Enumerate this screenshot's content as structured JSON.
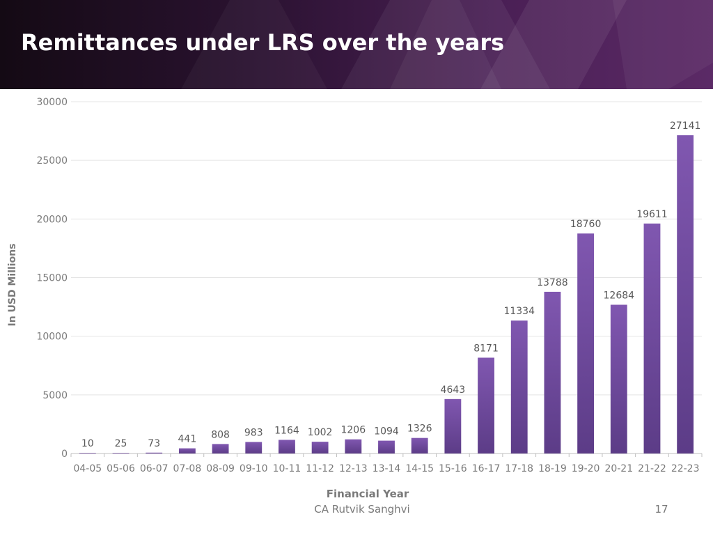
{
  "slide": {
    "title": "Remittances under LRS over the years",
    "footer_author": "CA Rutvik Sanghvi",
    "page_number": "17"
  },
  "colors": {
    "header_dark": "#140a14",
    "header_purple": "#5b2a66",
    "bar": "#7a55a6",
    "bar_dark": "#5a3a84"
  },
  "chart_data": {
    "type": "bar",
    "title": "",
    "xlabel": "Financial Year",
    "ylabel": "In USD Millions",
    "ylim": [
      0,
      30000
    ],
    "yticks": [
      0,
      5000,
      10000,
      15000,
      20000,
      25000,
      30000
    ],
    "grid": true,
    "categories": [
      "04-05",
      "05-06",
      "06-07",
      "07-08",
      "08-09",
      "09-10",
      "10-11",
      "11-12",
      "12-13",
      "13-14",
      "14-15",
      "15-16",
      "16-17",
      "17-18",
      "18-19",
      "19-20",
      "20-21",
      "21-22",
      "22-23"
    ],
    "values": [
      10,
      25,
      73,
      441,
      808,
      983,
      1164,
      1002,
      1206,
      1094,
      1326,
      4643,
      8171,
      11334,
      13788,
      18760,
      12684,
      19611,
      27141
    ]
  }
}
